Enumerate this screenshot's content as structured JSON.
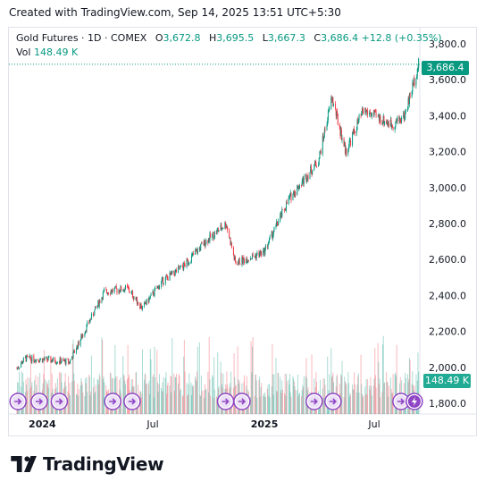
{
  "caption": "Created with TradingView.com, Sep 14, 2025 13:51 UTC+5:30",
  "legend": {
    "symbol": "Gold Futures · 1D · COMEX",
    "open_key": "O",
    "open": "3,672.8",
    "high_key": "H",
    "high": "3,695.5",
    "low_key": "L",
    "low": "3,667.3",
    "close_key": "C",
    "close": "3,686.4",
    "change": "+12.8 (+0.35%)",
    "volume_key": "Vol",
    "volume": "148.49 K"
  },
  "price_tag": "3,686.4",
  "volume_tag": "148.49 K",
  "brand": "TradingView",
  "colors": {
    "up": "#089981",
    "down": "#f23645",
    "accent": "#089981",
    "event": "#8f46c4",
    "axis_text": "#131722"
  },
  "chart_data": {
    "type": "candlestick",
    "y_ticks": [
      "3,800.0",
      "3,600.0",
      "3,400.0",
      "3,200.0",
      "3,000.0",
      "2,800.0",
      "2,600.0",
      "2,400.0",
      "2,200.0",
      "2,000.0",
      "1,800.0"
    ],
    "ylim": [
      1750,
      3850
    ],
    "x_labels": [
      "2024",
      "Jul",
      "2025",
      "Jul"
    ],
    "last_price": 3686.4,
    "price_path": [
      {
        "date": "2023-11-20",
        "close": 1995
      },
      {
        "date": "2023-12-04",
        "close": 2050
      },
      {
        "date": "2024-01-15",
        "close": 2040
      },
      {
        "date": "2024-02-15",
        "close": 2030
      },
      {
        "date": "2024-03-08",
        "close": 2185
      },
      {
        "date": "2024-04-12",
        "close": 2420
      },
      {
        "date": "2024-05-20",
        "close": 2440
      },
      {
        "date": "2024-06-14",
        "close": 2330
      },
      {
        "date": "2024-07-17",
        "close": 2480
      },
      {
        "date": "2024-08-20",
        "close": 2560
      },
      {
        "date": "2024-09-26",
        "close": 2700
      },
      {
        "date": "2024-10-30",
        "close": 2800
      },
      {
        "date": "2024-11-14",
        "close": 2580
      },
      {
        "date": "2024-12-31",
        "close": 2640
      },
      {
        "date": "2025-02-11",
        "close": 2940
      },
      {
        "date": "2025-03-31",
        "close": 3150
      },
      {
        "date": "2025-04-22",
        "close": 3500
      },
      {
        "date": "2025-05-15",
        "close": 3200
      },
      {
        "date": "2025-06-13",
        "close": 3430
      },
      {
        "date": "2025-07-31",
        "close": 3350
      },
      {
        "date": "2025-08-20",
        "close": 3400
      },
      {
        "date": "2025-09-12",
        "close": 3686.4
      }
    ],
    "event_markers": [
      {
        "date": "2023-11-22",
        "type": "dividend-forward"
      },
      {
        "date": "2023-12-27",
        "type": "dividend-forward"
      },
      {
        "date": "2024-01-29",
        "type": "dividend-forward"
      },
      {
        "date": "2024-04-26",
        "type": "dividend-forward"
      },
      {
        "date": "2024-05-28",
        "type": "dividend-forward"
      },
      {
        "date": "2024-10-29",
        "type": "dividend-forward"
      },
      {
        "date": "2024-11-25",
        "type": "dividend-forward"
      },
      {
        "date": "2025-03-24",
        "type": "dividend-forward"
      },
      {
        "date": "2025-04-24",
        "type": "dividend-forward"
      },
      {
        "date": "2025-08-14",
        "type": "dividend-forward"
      },
      {
        "date": "2025-09-05",
        "type": "earnings-flash"
      }
    ]
  }
}
